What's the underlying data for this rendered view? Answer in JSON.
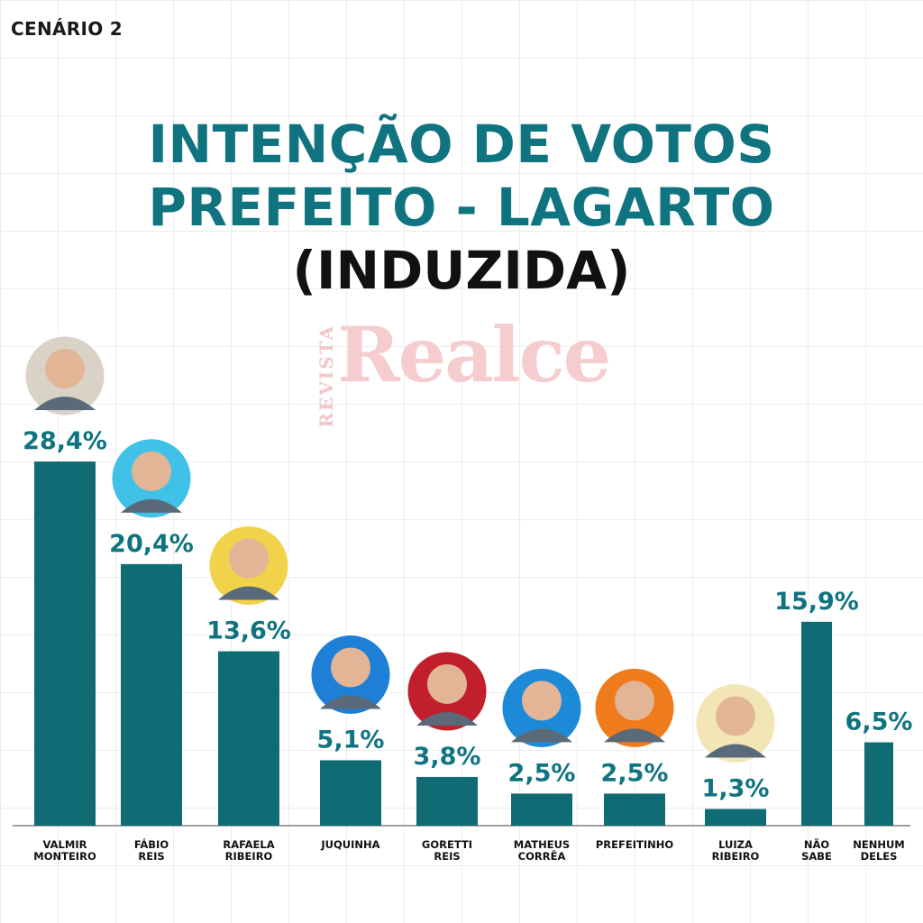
{
  "header": {
    "scenario": "CENÁRIO 2"
  },
  "watermark": {
    "small": "REVISTA",
    "brand": "Realce"
  },
  "chart_data": {
    "type": "bar",
    "title_lines": [
      "INTENÇÃO DE VOTOS",
      "PREFEITO - LAGARTO",
      "(INDUZIDA)"
    ],
    "categories": [
      [
        "VALMIR",
        "MONTEIRO"
      ],
      [
        "FÁBIO",
        "REIS"
      ],
      [
        "RAFAELA",
        "RIBEIRO"
      ],
      [
        "JUQUINHA"
      ],
      [
        "GORETTI",
        "REIS"
      ],
      [
        "MATHEUS",
        "CORRÊA"
      ],
      [
        "PREFEITINHO"
      ],
      [
        "LUIZA",
        "RIBEIRO"
      ],
      [
        "NÃO",
        "SABE"
      ],
      [
        "NENHUM",
        "DELES"
      ]
    ],
    "values": [
      28.4,
      20.4,
      13.6,
      5.1,
      3.8,
      2.5,
      2.5,
      1.3,
      15.9,
      6.5
    ],
    "value_labels": [
      "28,4%",
      "20,4%",
      "13,6%",
      "5,1%",
      "3,8%",
      "2,5%",
      "2,5%",
      "1,3%",
      "15,9%",
      "6,5%"
    ],
    "photo_colors": [
      "#d9d3c7",
      "#3fc1e8",
      "#f2d24a",
      "#1e7fd6",
      "#c21f2c",
      "#1d8ad8",
      "#f07b1c",
      "#f3e6b5",
      null,
      null
    ],
    "bar_color": "#0f6b74",
    "ylim": [
      0,
      28.4
    ]
  }
}
